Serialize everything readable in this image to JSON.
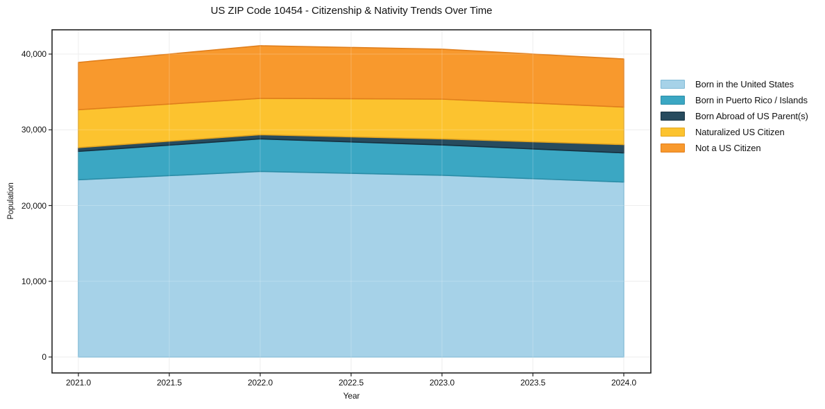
{
  "title": "US ZIP Code 10454 - Citizenship & Nativity Trends Over Time",
  "chart_data": {
    "type": "area",
    "stacked": true,
    "title": "US ZIP Code 10454 - Citizenship & Nativity Trends Over Time",
    "xlabel": "Year",
    "ylabel": "Population",
    "x": [
      2021,
      2022,
      2023,
      2024
    ],
    "xlim": [
      2020.85,
      2024.15
    ],
    "ylim": [
      -2100,
      43200
    ],
    "grid": true,
    "legend_position": "right-outside",
    "xticks": [
      {
        "label": "2021.0",
        "value": 2021.0
      },
      {
        "label": "2021.5",
        "value": 2021.5
      },
      {
        "label": "2022.0",
        "value": 2022.0
      },
      {
        "label": "2022.5",
        "value": 2022.5
      },
      {
        "label": "2023.0",
        "value": 2023.0
      },
      {
        "label": "2023.5",
        "value": 2023.5
      },
      {
        "label": "2024.0",
        "value": 2024.0
      }
    ],
    "yticks": [
      {
        "label": "0",
        "value": 0
      },
      {
        "label": "10,000",
        "value": 10000
      },
      {
        "label": "20,000",
        "value": 20000
      },
      {
        "label": "30,000",
        "value": 30000
      },
      {
        "label": "40,000",
        "value": 40000
      }
    ],
    "series": [
      {
        "name": "Born in the United States",
        "color": "#a6d2e8",
        "edge": "#7eb9d6",
        "values": [
          23400,
          24500,
          24000,
          23100
        ]
      },
      {
        "name": "Born in Puerto Rico / Islands",
        "color": "#3ba7c3",
        "edge": "#2b8da7",
        "values": [
          3750,
          4300,
          4000,
          3850
        ]
      },
      {
        "name": "Born Abroad of US Parent(s)",
        "color": "#274b5e",
        "edge": "#16303f",
        "values": [
          500,
          550,
          800,
          1100
        ]
      },
      {
        "name": "Naturalized US Citizen",
        "color": "#fcc32f",
        "edge": "#e2a41f",
        "values": [
          5000,
          4800,
          5250,
          4950
        ]
      },
      {
        "name": "Not a US Citizen",
        "color": "#f8992d",
        "edge": "#e07e1b",
        "values": [
          6250,
          6950,
          6600,
          6350
        ]
      }
    ]
  }
}
